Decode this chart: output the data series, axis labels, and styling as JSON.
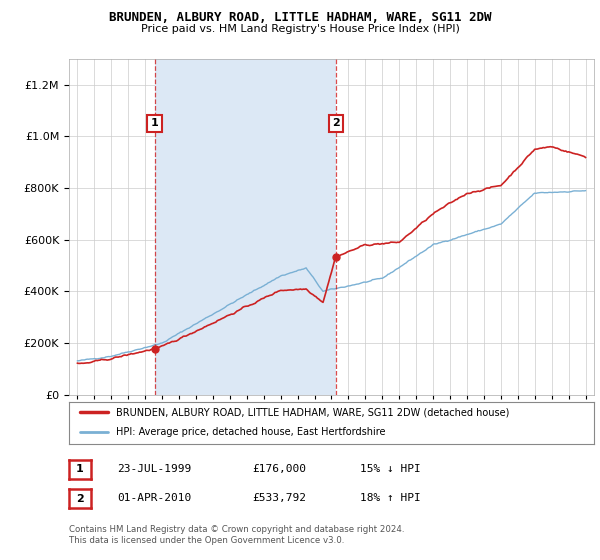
{
  "title": "BRUNDEN, ALBURY ROAD, LITTLE HADHAM, WARE, SG11 2DW",
  "subtitle": "Price paid vs. HM Land Registry's House Price Index (HPI)",
  "background_color": "#ffffff",
  "plot_bg_color": "#ffffff",
  "shade_color": "#dce8f5",
  "red_line_color": "#cc2222",
  "blue_line_color": "#7ab0d4",
  "sale1_year": 1999.56,
  "sale1_price": 176000,
  "sale1_label": "1",
  "sale2_year": 2010.25,
  "sale2_price": 533792,
  "sale2_label": "2",
  "legend_line1": "BRUNDEN, ALBURY ROAD, LITTLE HADHAM, WARE, SG11 2DW (detached house)",
  "legend_line2": "HPI: Average price, detached house, East Hertfordshire",
  "table_row1": [
    "1",
    "23-JUL-1999",
    "£176,000",
    "15% ↓ HPI"
  ],
  "table_row2": [
    "2",
    "01-APR-2010",
    "£533,792",
    "18% ↑ HPI"
  ],
  "footnote": "Contains HM Land Registry data © Crown copyright and database right 2024.\nThis data is licensed under the Open Government Licence v3.0.",
  "ylim_max": 1300000,
  "xmin": 1994.5,
  "xmax": 2025.5
}
